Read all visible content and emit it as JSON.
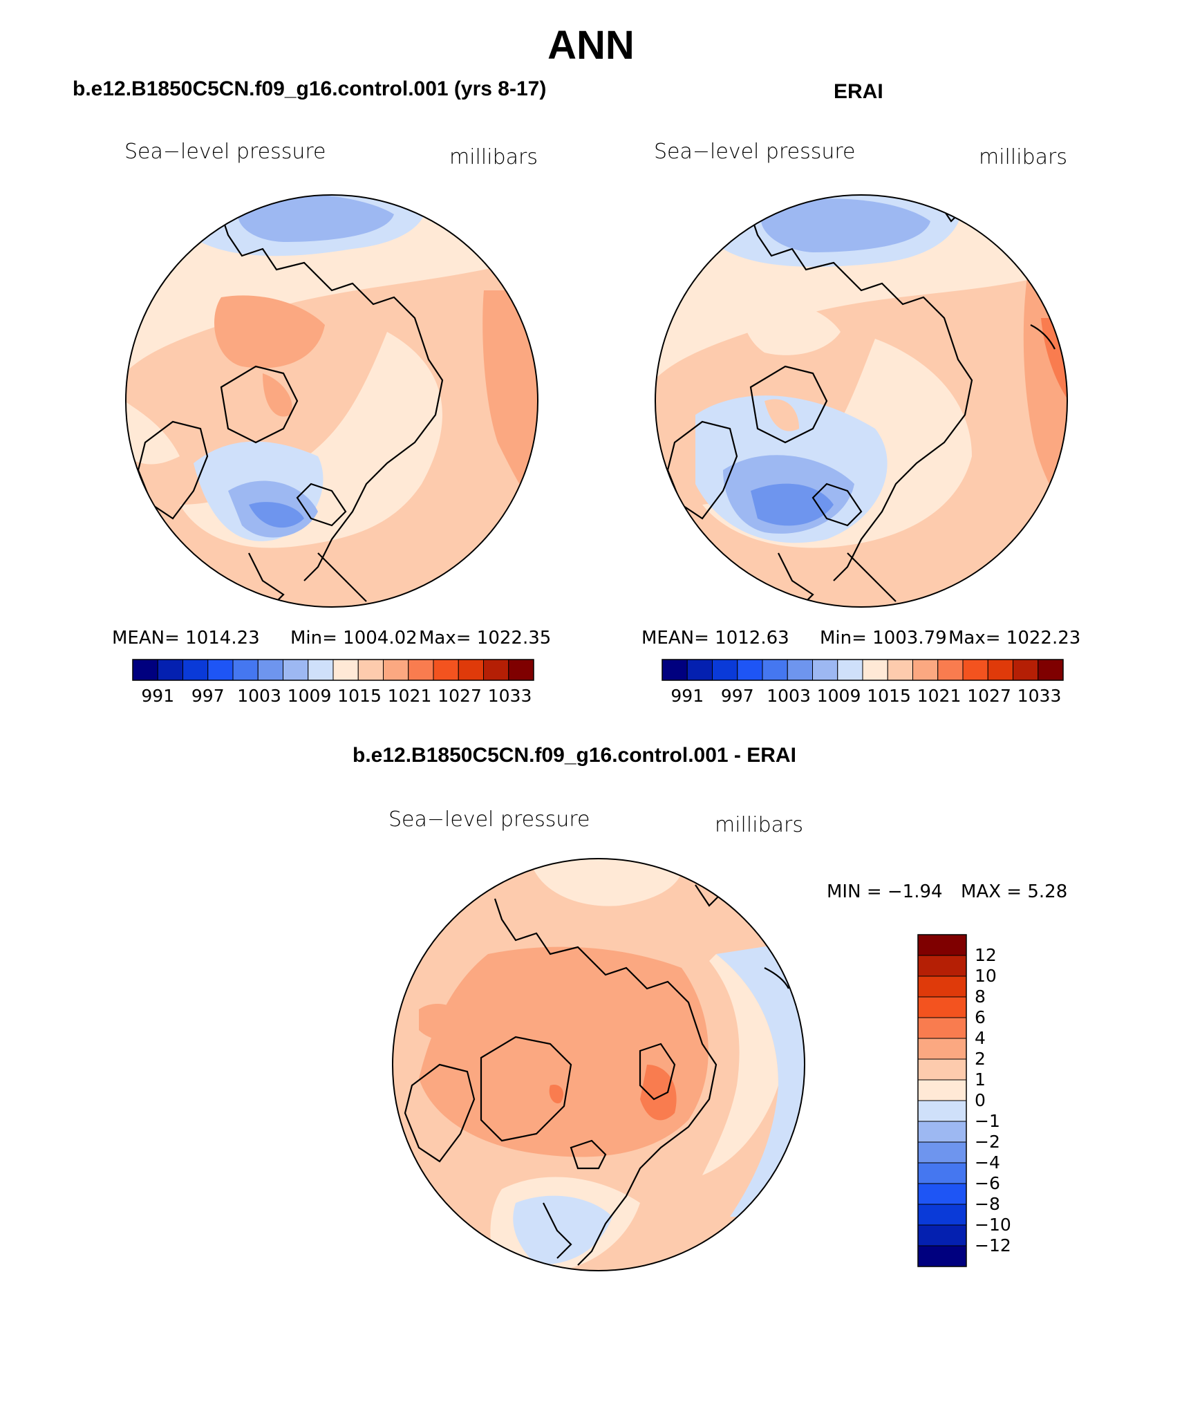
{
  "title": "ANN",
  "panels": [
    {
      "title": "b.e12.B1850C5CN.f09_g16.control.001 (yrs 8-17)",
      "left_label": "Sea−level pressure",
      "right_label": "millibars",
      "stats": {
        "mean": "MEAN= 1014.23",
        "min": "Min= 1004.02",
        "max": "Max= 1022.35"
      }
    },
    {
      "title": "ERAI",
      "left_label": "Sea−level pressure",
      "right_label": "millibars",
      "stats": {
        "mean": "MEAN= 1012.63",
        "min": "Min= 1003.79",
        "max": "Max= 1022.23"
      }
    },
    {
      "title": "b.e12.B1850C5CN.f09_g16.control.001 - ERAI",
      "left_label": "Sea−level pressure",
      "right_label": "millibars",
      "stats": {
        "min": "MIN =   −1.94",
        "max": "MAX =    5.28"
      }
    }
  ],
  "colorbar_abs": {
    "colors": [
      "#00007f",
      "#0420b0",
      "#0a3ad8",
      "#1e55f5",
      "#4577f0",
      "#6e95ee",
      "#9db8f2",
      "#cfe0fa",
      "#ffe9d6",
      "#fdcbad",
      "#fba881",
      "#f97c4f",
      "#f3531f",
      "#df3a0a",
      "#b51f05",
      "#7f0000"
    ],
    "tick_labels": [
      "991",
      "997",
      "1003",
      "1009",
      "1015",
      "1021",
      "1027",
      "1033"
    ]
  },
  "colorbar_diff": {
    "colors": [
      "#7f0000",
      "#b51f05",
      "#df3a0a",
      "#f3531f",
      "#f97c4f",
      "#fba881",
      "#fdcbad",
      "#ffe9d6",
      "#cfe0fa",
      "#9db8f2",
      "#6e95ee",
      "#4577f0",
      "#1e55f5",
      "#0a3ad8",
      "#0420b0",
      "#00007f"
    ],
    "tick_labels": [
      "12",
      "10",
      "8",
      "6",
      "4",
      "2",
      "1",
      "0",
      "−1",
      "−2",
      "−4",
      "−6",
      "−8",
      "−10",
      "−12"
    ]
  }
}
